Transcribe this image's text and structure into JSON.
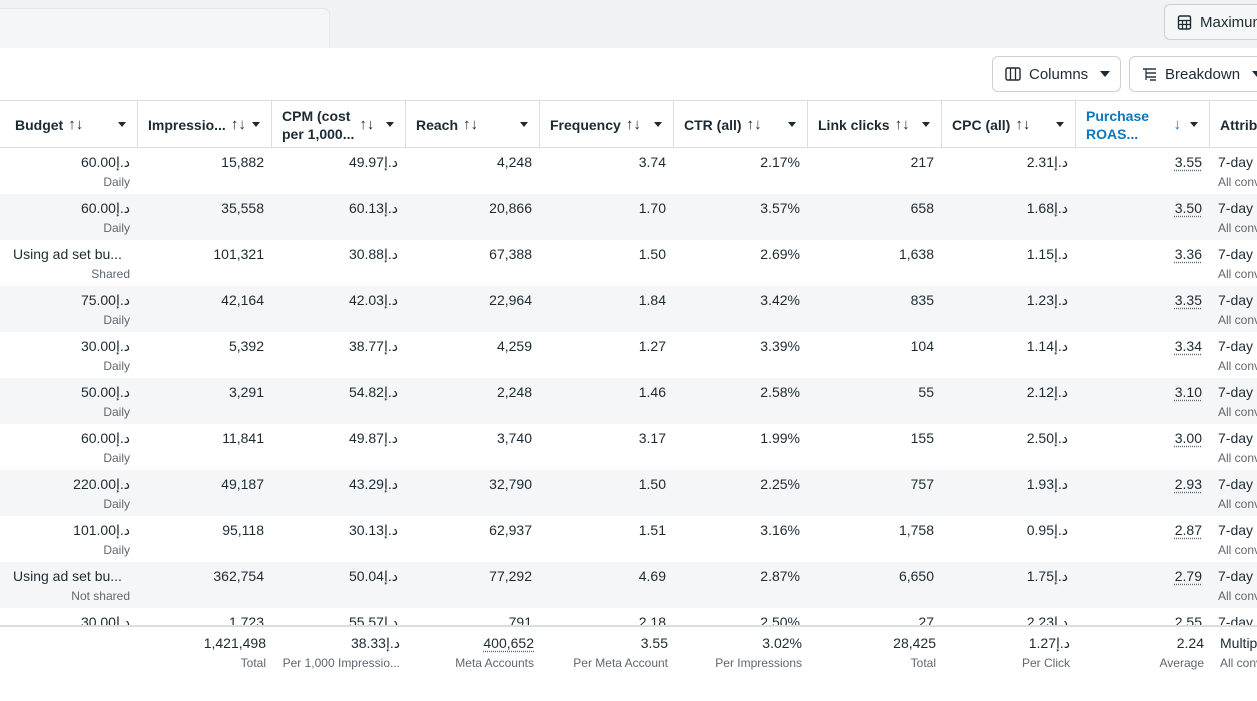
{
  "topbar": {
    "maximum_label": "Maximum"
  },
  "toolbar": {
    "columns_label": "Columns",
    "breakdown_label": "Breakdown"
  },
  "columns": [
    {
      "key": "budget",
      "label": "Budget",
      "sort": "↑↓"
    },
    {
      "key": "impressions",
      "label": "Impressio...",
      "sort": "↑↓"
    },
    {
      "key": "cpm",
      "label": "CPM (cost\nper 1,000...",
      "sort": "↑↓"
    },
    {
      "key": "reach",
      "label": "Reach",
      "sort": "↑↓"
    },
    {
      "key": "frequency",
      "label": "Frequency",
      "sort": "↑↓"
    },
    {
      "key": "ctr",
      "label": "CTR (all)",
      "sort": "↑↓"
    },
    {
      "key": "link_clicks",
      "label": "Link clicks",
      "sort": "↑↓"
    },
    {
      "key": "cpc",
      "label": "CPC (all)",
      "sort": "↑↓"
    },
    {
      "key": "roas",
      "label": "Purchase\nROAS...",
      "sort": "↓"
    },
    {
      "key": "attribution",
      "label": "Attrib",
      "sort": ""
    }
  ],
  "rows": [
    {
      "budget": "60.00د.إ",
      "budget_type": "Daily",
      "impressions": "15,882",
      "cpm": "49.97د.إ",
      "reach": "4,248",
      "frequency": "3.74",
      "ctr": "2.17%",
      "link_clicks": "217",
      "cpc": "2.31د.إ",
      "roas": "3.55",
      "attr": "7-day",
      "attr_sub": "All conv"
    },
    {
      "budget": "60.00د.إ",
      "budget_type": "Daily",
      "impressions": "35,558",
      "cpm": "60.13د.إ",
      "reach": "20,866",
      "frequency": "1.70",
      "ctr": "3.57%",
      "link_clicks": "658",
      "cpc": "1.68د.إ",
      "roas": "3.50",
      "attr": "7-day",
      "attr_sub": "All conv"
    },
    {
      "budget": "Using ad set bu...",
      "budget_type": "Shared",
      "impressions": "101,321",
      "cpm": "30.88د.إ",
      "reach": "67,388",
      "frequency": "1.50",
      "ctr": "2.69%",
      "link_clicks": "1,638",
      "cpc": "1.15د.إ",
      "roas": "3.36",
      "attr": "7-day",
      "attr_sub": "All conv"
    },
    {
      "budget": "75.00د.إ",
      "budget_type": "Daily",
      "impressions": "42,164",
      "cpm": "42.03د.إ",
      "reach": "22,964",
      "frequency": "1.84",
      "ctr": "3.42%",
      "link_clicks": "835",
      "cpc": "1.23د.إ",
      "roas": "3.35",
      "attr": "7-day",
      "attr_sub": "All conv"
    },
    {
      "budget": "30.00د.إ",
      "budget_type": "Daily",
      "impressions": "5,392",
      "cpm": "38.77د.إ",
      "reach": "4,259",
      "frequency": "1.27",
      "ctr": "3.39%",
      "link_clicks": "104",
      "cpc": "1.14د.إ",
      "roas": "3.34",
      "attr": "7-day",
      "attr_sub": "All conv"
    },
    {
      "budget": "50.00د.إ",
      "budget_type": "Daily",
      "impressions": "3,291",
      "cpm": "54.82د.إ",
      "reach": "2,248",
      "frequency": "1.46",
      "ctr": "2.58%",
      "link_clicks": "55",
      "cpc": "2.12د.إ",
      "roas": "3.10",
      "attr": "7-day",
      "attr_sub": "All conv"
    },
    {
      "budget": "60.00د.إ",
      "budget_type": "Daily",
      "impressions": "11,841",
      "cpm": "49.87د.إ",
      "reach": "3,740",
      "frequency": "3.17",
      "ctr": "1.99%",
      "link_clicks": "155",
      "cpc": "2.50د.إ",
      "roas": "3.00",
      "attr": "7-day",
      "attr_sub": "All conv"
    },
    {
      "budget": "220.00د.إ",
      "budget_type": "Daily",
      "impressions": "49,187",
      "cpm": "43.29د.إ",
      "reach": "32,790",
      "frequency": "1.50",
      "ctr": "2.25%",
      "link_clicks": "757",
      "cpc": "1.93د.إ",
      "roas": "2.93",
      "attr": "7-day",
      "attr_sub": "All conv"
    },
    {
      "budget": "101.00د.إ",
      "budget_type": "Daily",
      "impressions": "95,118",
      "cpm": "30.13د.إ",
      "reach": "62,937",
      "frequency": "1.51",
      "ctr": "3.16%",
      "link_clicks": "1,758",
      "cpc": "0.95د.إ",
      "roas": "2.87",
      "attr": "7-day",
      "attr_sub": "All conv"
    },
    {
      "budget": "Using ad set bu...",
      "budget_type": "Not shared",
      "impressions": "362,754",
      "cpm": "50.04د.إ",
      "reach": "77,292",
      "frequency": "4.69",
      "ctr": "2.87%",
      "link_clicks": "6,650",
      "cpc": "1.75د.إ",
      "roas": "2.79",
      "attr": "7-day",
      "attr_sub": "All conv"
    },
    {
      "budget": "30.00د.إ",
      "budget_type": "Daily",
      "impressions": "1,723",
      "cpm": "55.57د.إ",
      "reach": "791",
      "frequency": "2.18",
      "ctr": "2.50%",
      "link_clicks": "27",
      "cpc": "2.23د.إ",
      "roas": "2.55",
      "attr": "7-day",
      "attr_sub": "All conv"
    }
  ],
  "totals": {
    "impressions": "1,421,498",
    "impressions_sub": "Total",
    "cpm": "38.33د.إ",
    "cpm_sub": "Per 1,000 Impressio...",
    "reach": "400,652",
    "reach_sub": "Meta Accounts",
    "frequency": "3.55",
    "frequency_sub": "Per Meta Account",
    "ctr": "3.02%",
    "ctr_sub": "Per Impressions",
    "link_clicks": "28,425",
    "link_clicks_sub": "Total",
    "cpc": "1.27د.إ",
    "cpc_sub": "Per Click",
    "roas": "2.24",
    "roas_sub": "Average",
    "attr": "Multip",
    "attr_sub": "All conv"
  }
}
